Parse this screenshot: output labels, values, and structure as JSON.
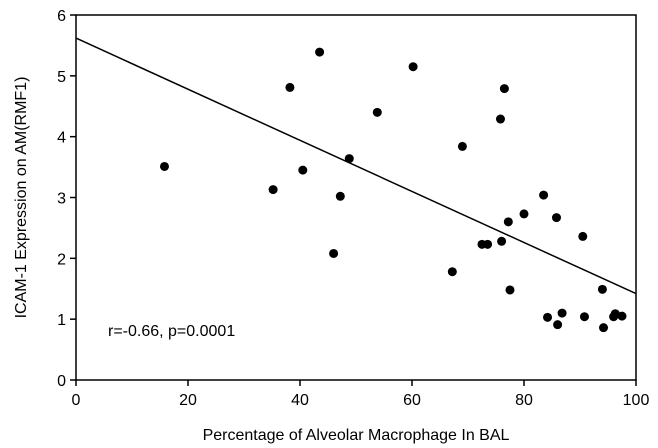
{
  "chart_data": {
    "type": "scatter",
    "title": "",
    "xlabel": "Percentage of Alveolar Macrophage In BAL",
    "ylabel": "ICAM-1 Expression on AM(RMF1)",
    "xlim": [
      0,
      100
    ],
    "ylim": [
      0,
      6
    ],
    "x_ticks": [
      "0",
      "20",
      "40",
      "60",
      "80",
      "100"
    ],
    "y_ticks": [
      "0",
      "1",
      "2",
      "3",
      "4",
      "5",
      "6"
    ],
    "grid": false,
    "annotation": "r=-0.66,  p=0.0001",
    "trendline": {
      "x": [
        0,
        100
      ],
      "y": [
        5.62,
        1.42
      ]
    },
    "points": [
      {
        "x": 15.8,
        "y": 3.51
      },
      {
        "x": 35.2,
        "y": 3.13
      },
      {
        "x": 38.2,
        "y": 4.81
      },
      {
        "x": 40.5,
        "y": 3.45
      },
      {
        "x": 43.5,
        "y": 5.39
      },
      {
        "x": 46.0,
        "y": 2.08
      },
      {
        "x": 47.2,
        "y": 3.02
      },
      {
        "x": 48.8,
        "y": 3.64
      },
      {
        "x": 53.8,
        "y": 4.4
      },
      {
        "x": 60.2,
        "y": 5.15
      },
      {
        "x": 67.2,
        "y": 1.78
      },
      {
        "x": 69.0,
        "y": 3.84
      },
      {
        "x": 72.5,
        "y": 2.23
      },
      {
        "x": 73.5,
        "y": 2.23
      },
      {
        "x": 75.8,
        "y": 4.29
      },
      {
        "x": 76.0,
        "y": 2.28
      },
      {
        "x": 76.5,
        "y": 4.79
      },
      {
        "x": 77.2,
        "y": 2.6
      },
      {
        "x": 77.5,
        "y": 1.48
      },
      {
        "x": 80.0,
        "y": 2.73
      },
      {
        "x": 83.5,
        "y": 3.04
      },
      {
        "x": 84.2,
        "y": 1.03
      },
      {
        "x": 85.8,
        "y": 2.67
      },
      {
        "x": 86.0,
        "y": 0.91
      },
      {
        "x": 86.8,
        "y": 1.1
      },
      {
        "x": 90.5,
        "y": 2.36
      },
      {
        "x": 90.8,
        "y": 1.04
      },
      {
        "x": 94.0,
        "y": 1.49
      },
      {
        "x": 94.2,
        "y": 0.86
      },
      {
        "x": 96.0,
        "y": 1.04
      },
      {
        "x": 96.3,
        "y": 1.09
      },
      {
        "x": 97.5,
        "y": 1.05
      }
    ]
  }
}
